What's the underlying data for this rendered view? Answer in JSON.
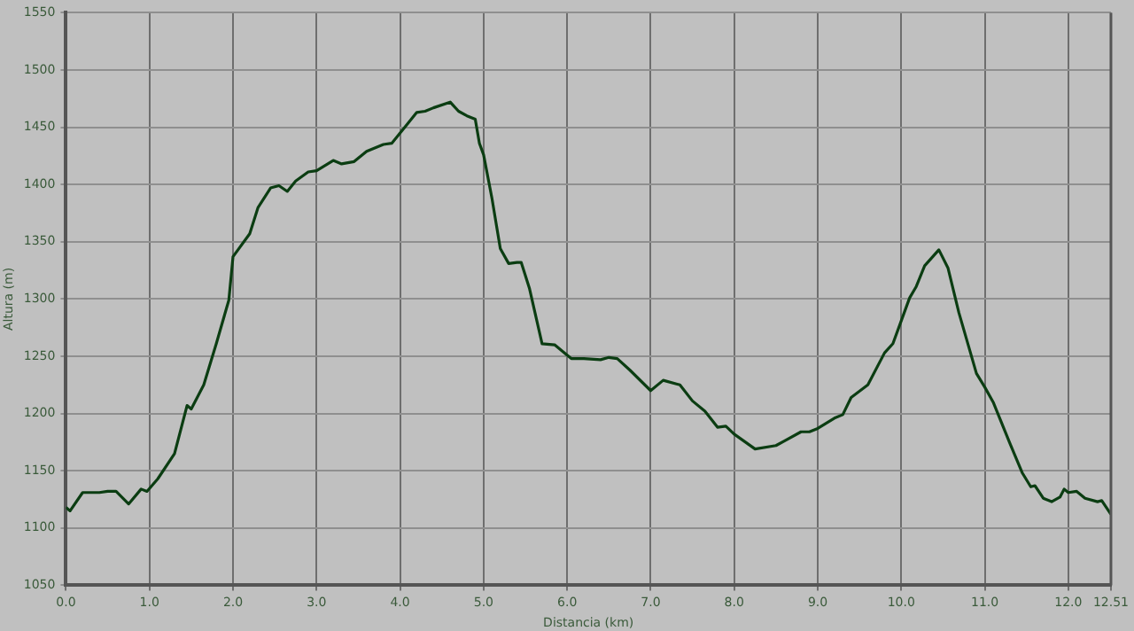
{
  "chart_data": {
    "type": "line",
    "xlabel": "Distancia (km)",
    "ylabel": "Altura (m)",
    "x": [
      0,
      0.05,
      0.2,
      0.4,
      0.5,
      0.6,
      0.75,
      0.9,
      0.97,
      1.1,
      1.3,
      1.45,
      1.5,
      1.65,
      1.8,
      1.95,
      2.0,
      2.2,
      2.3,
      2.45,
      2.55,
      2.65,
      2.75,
      2.9,
      3.0,
      3.2,
      3.3,
      3.45,
      3.6,
      3.8,
      3.9,
      4.1,
      4.2,
      4.3,
      4.4,
      4.6,
      4.7,
      4.8,
      4.9,
      4.95,
      5.0,
      5.1,
      5.2,
      5.3,
      5.4,
      5.45,
      5.55,
      5.7,
      5.85,
      6.0,
      6.05,
      6.2,
      6.4,
      6.5,
      6.6,
      6.75,
      7.0,
      7.15,
      7.35,
      7.5,
      7.65,
      7.8,
      7.9,
      8.0,
      8.25,
      8.5,
      8.6,
      8.8,
      8.9,
      9.0,
      9.2,
      9.3,
      9.4,
      9.6,
      9.8,
      9.9,
      10.1,
      10.18,
      10.28,
      10.45,
      10.56,
      10.69,
      10.9,
      11.0,
      11.1,
      11.3,
      11.45,
      11.55,
      11.6,
      11.7,
      11.8,
      11.9,
      11.95,
      12.0,
      12.1,
      12.2,
      12.35,
      12.4,
      12.51
    ],
    "series": [
      {
        "color": "#0b3d12",
        "values": [
          1118,
          1115,
          1131,
          1131,
          1132,
          1132,
          1121,
          1134,
          1132,
          1143,
          1165,
          1207,
          1204,
          1225,
          1261,
          1299,
          1337,
          1357,
          1380,
          1397,
          1399,
          1394,
          1403,
          1411,
          1412,
          1421,
          1418,
          1420,
          1429,
          1435,
          1436,
          1454,
          1463,
          1464,
          1467,
          1472,
          1464,
          1460,
          1457,
          1436,
          1426,
          1388,
          1344,
          1331,
          1332,
          1332,
          1309,
          1261,
          1260,
          1251,
          1248,
          1248,
          1247,
          1249,
          1248,
          1238,
          1220,
          1229,
          1225,
          1211,
          1202,
          1188,
          1189,
          1182,
          1169,
          1172,
          1176,
          1184,
          1184,
          1187,
          1196,
          1199,
          1214,
          1225,
          1253,
          1261,
          1301,
          1311,
          1329,
          1343,
          1327,
          1288,
          1235,
          1223,
          1210,
          1174,
          1148,
          1136,
          1137,
          1126,
          1123,
          1127,
          1134,
          1131,
          1132,
          1126,
          1123,
          1124,
          1112
        ]
      }
    ],
    "xlim": [
      0,
      12.51
    ],
    "xticks": [
      {
        "value": 0,
        "label": "0.0"
      },
      {
        "value": 1,
        "label": "1.0"
      },
      {
        "value": 2,
        "label": "2.0"
      },
      {
        "value": 3,
        "label": "3.0"
      },
      {
        "value": 4,
        "label": "4.0"
      },
      {
        "value": 5,
        "label": "5.0"
      },
      {
        "value": 6,
        "label": "6.0"
      },
      {
        "value": 7,
        "label": "7.0"
      },
      {
        "value": 8,
        "label": "8.0"
      },
      {
        "value": 9,
        "label": "9.0"
      },
      {
        "value": 10,
        "label": "10.0"
      },
      {
        "value": 11,
        "label": "11.0"
      },
      {
        "value": 12,
        "label": "12.0"
      },
      12.51
    ],
    "ylim": [
      1050,
      1550
    ],
    "yticks": [
      1050,
      1100,
      1150,
      1200,
      1250,
      1300,
      1350,
      1400,
      1450,
      1500,
      1550
    ],
    "grid": true,
    "legend": false,
    "marker": "none",
    "line_style": "solid"
  }
}
